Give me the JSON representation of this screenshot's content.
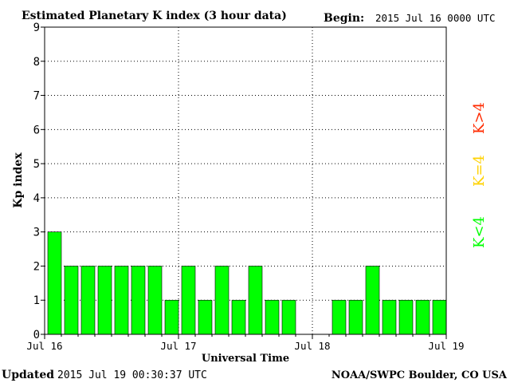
{
  "header": {
    "title": "Estimated Planetary K index (3 hour data)",
    "begin_label": "Begin:",
    "begin_value": "2015 Jul 16 0000 UTC"
  },
  "footer": {
    "updated_label": "Updated",
    "updated_value": "2015 Jul 19 00:30:37 UTC",
    "source": "NOAA/SWPC Boulder, CO USA"
  },
  "legend": {
    "high": {
      "label": "K>4",
      "color": "#ff2a00"
    },
    "mid": {
      "label": "K=4",
      "color": "#ffd200"
    },
    "low": {
      "label": "K<4",
      "color": "#00ff00"
    }
  },
  "chart_data": {
    "type": "bar",
    "title": "Estimated Planetary K index (3 hour data)",
    "xlabel": "Universal Time",
    "ylabel": "Kp index",
    "ylim": [
      0,
      9
    ],
    "yticks": [
      0,
      1,
      2,
      3,
      4,
      5,
      6,
      7,
      8,
      9
    ],
    "xtick_labels": [
      "Jul 16",
      "Jul 17",
      "Jul 18",
      "Jul 19"
    ],
    "bar_color": "#00ff00",
    "grid": true,
    "series": [
      {
        "values": [
          3,
          2,
          2,
          2,
          2,
          2,
          2,
          1,
          2,
          1,
          2,
          1,
          2,
          1,
          1,
          null,
          null,
          1,
          1,
          2,
          1,
          1,
          1,
          1
        ]
      }
    ]
  }
}
